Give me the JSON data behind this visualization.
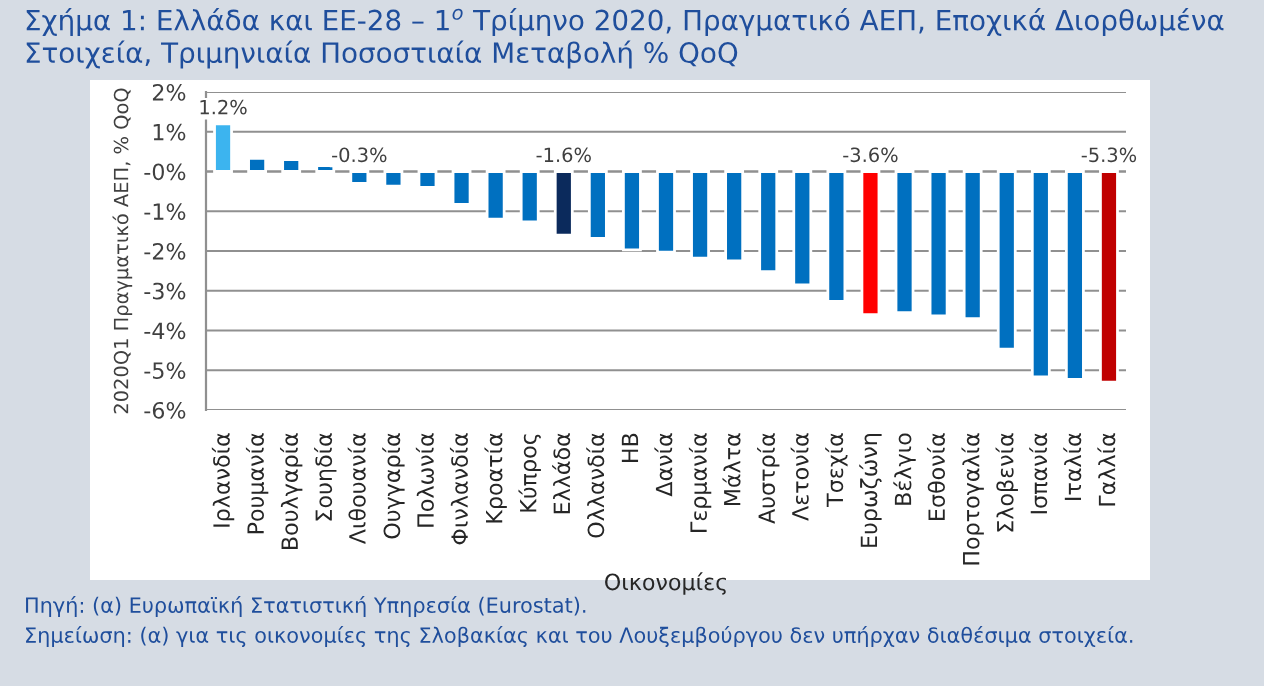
{
  "chart_data": {
    "type": "bar",
    "title": "Σχήμα 1: Ελλάδα και ΕΕ-28 – 1$^{ο}$ Τρίμηνο 2020, Πραγματικό ΑΕΠ, Εποχικά Διορθωμένα Στοιχεία, Τριμηνιαία Ποσοστιαία Μεταβολή % QoQ",
    "xlabel": "Οικονομίες",
    "ylabel": "2020Q1 Πραγματικό ΑΕΠ, % QoQ",
    "categories": [
      "Ιρλανδία",
      "Ρουμανία",
      "Βουλγαρία",
      "Σουηδία",
      "Λιθουανία",
      "Ουγγαρία",
      "Πολωνία",
      "Φινλανδία",
      "Κροατία",
      "Κύπρος",
      "Ελλάδα",
      "Ολλανδία",
      "ΗΒ",
      "Δανία",
      "Γερμανία",
      "Μάλτα",
      "Αυστρία",
      "Λετονία",
      "Τσεχία",
      "Ευρωζώνη",
      "Βέλγιο",
      "Εσθονία",
      "Πορτογαλία",
      "Σλοβενία",
      "Ισπανία",
      "Ιταλία",
      "Γαλλία"
    ],
    "values": [
      1.2,
      0.33,
      0.3,
      0.15,
      -0.3,
      -0.37,
      -0.4,
      -0.83,
      -1.2,
      -1.27,
      -1.6,
      -1.68,
      -1.97,
      -2.03,
      -2.18,
      -2.25,
      -2.52,
      -2.85,
      -3.27,
      -3.6,
      -3.55,
      -3.63,
      -3.7,
      -4.47,
      -5.17,
      -5.23,
      -5.3
    ],
    "colors": [
      "#3cb4ef",
      "#0070c0",
      "#0070c0",
      "#0070c0",
      "#0070c0",
      "#0070c0",
      "#0070c0",
      "#0070c0",
      "#0070c0",
      "#0070c0",
      "#0b2a5c",
      "#0070c0",
      "#0070c0",
      "#0070c0",
      "#0070c0",
      "#0070c0",
      "#0070c0",
      "#0070c0",
      "#0070c0",
      "#ff0000",
      "#0070c0",
      "#0070c0",
      "#0070c0",
      "#0070c0",
      "#0070c0",
      "#0070c0",
      "#c00000"
    ],
    "value_labels": [
      "1.2%",
      null,
      null,
      null,
      "-0.3%",
      null,
      null,
      null,
      null,
      null,
      "-1.6%",
      null,
      null,
      null,
      null,
      null,
      null,
      null,
      null,
      "-3.6%",
      null,
      null,
      null,
      null,
      null,
      null,
      "-5.3%"
    ],
    "ylim": [
      -6,
      2
    ],
    "yticks": [
      {
        "value": 2,
        "label": "2%"
      },
      {
        "value": 1,
        "label": "1%"
      },
      {
        "value": 0,
        "label": "-0%"
      },
      {
        "value": -1,
        "label": "-1%"
      },
      {
        "value": -2,
        "label": "-2%"
      },
      {
        "value": -3,
        "label": "-3%"
      },
      {
        "value": -4,
        "label": "-4%"
      },
      {
        "value": -5,
        "label": "-5%"
      },
      {
        "value": -6,
        "label": "-6%"
      }
    ],
    "grid": "y",
    "annotations": [
      "Πηγή: (α) Ευρωπαϊκή Στατιστική Υπηρεσία (Eurostat).",
      "Σημείωση: (α) για τις οικονομίες της Σλοβακίας και του Λουξεμβούργου δεν υπήρχαν διαθέσιμα στοιχεία."
    ]
  }
}
